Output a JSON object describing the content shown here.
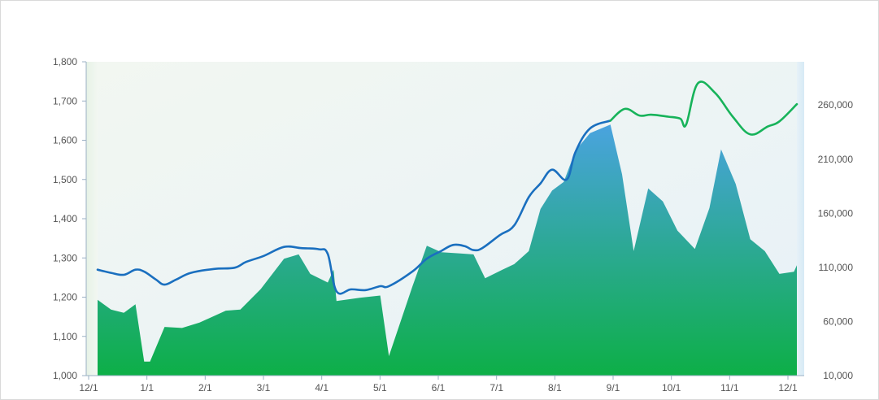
{
  "chart_data": {
    "type": "line",
    "title": "",
    "xlabel": "",
    "ylabel": "",
    "x_tick_labels": [
      "12/1",
      "1/1",
      "2/1",
      "3/1",
      "4/1",
      "5/1",
      "6/1",
      "7/1",
      "8/1",
      "9/1",
      "10/1",
      "11/1",
      "12/1"
    ],
    "y_left": {
      "range": [
        1000,
        1800
      ],
      "ticks": [
        1000,
        1100,
        1200,
        1300,
        1400,
        1500,
        1600,
        1700,
        1800
      ],
      "tick_labels": [
        "1,000",
        "1,100",
        "1,200",
        "1,300",
        "1,400",
        "1,500",
        "1,600",
        "1,700",
        "1,800"
      ]
    },
    "y_right": {
      "range": [
        10000,
        300000
      ],
      "ticks": [
        10000,
        60000,
        110000,
        160000,
        210000,
        260000
      ],
      "tick_labels": [
        "10,000",
        "60,000",
        "110,000",
        "160,000",
        "210,000",
        "260,000"
      ]
    },
    "grid": false,
    "series": [
      {
        "kind": "line",
        "axis": "left",
        "color_before": "#1a6fbf",
        "color_after": "#17b35a",
        "color_change_month": 8.8,
        "points": [
          [
            0,
            1270
          ],
          [
            0.23,
            1262
          ],
          [
            0.45,
            1257
          ],
          [
            0.65,
            1270
          ],
          [
            0.8,
            1265
          ],
          [
            1.0,
            1245
          ],
          [
            1.15,
            1232
          ],
          [
            1.35,
            1245
          ],
          [
            1.6,
            1262
          ],
          [
            2.0,
            1272
          ],
          [
            2.35,
            1275
          ],
          [
            2.55,
            1290
          ],
          [
            2.85,
            1305
          ],
          [
            3.2,
            1328
          ],
          [
            3.5,
            1325
          ],
          [
            3.8,
            1322
          ],
          [
            3.95,
            1310
          ],
          [
            4.1,
            1215
          ],
          [
            4.35,
            1220
          ],
          [
            4.6,
            1218
          ],
          [
            4.85,
            1228
          ],
          [
            5.0,
            1228
          ],
          [
            5.4,
            1265
          ],
          [
            5.65,
            1298
          ],
          [
            5.9,
            1318
          ],
          [
            6.1,
            1333
          ],
          [
            6.3,
            1330
          ],
          [
            6.45,
            1320
          ],
          [
            6.6,
            1325
          ],
          [
            6.9,
            1358
          ],
          [
            7.15,
            1383
          ],
          [
            7.4,
            1455
          ],
          [
            7.6,
            1490
          ],
          [
            7.8,
            1525
          ],
          [
            8.05,
            1500
          ],
          [
            8.2,
            1570
          ],
          [
            8.45,
            1630
          ],
          [
            8.8,
            1650
          ],
          [
            9.05,
            1680
          ],
          [
            9.3,
            1663
          ],
          [
            9.5,
            1665
          ],
          [
            9.8,
            1660
          ],
          [
            10.0,
            1655
          ],
          [
            10.1,
            1640
          ],
          [
            10.3,
            1745
          ],
          [
            10.6,
            1720
          ],
          [
            10.9,
            1660
          ],
          [
            11.2,
            1615
          ],
          [
            11.5,
            1635
          ],
          [
            11.7,
            1648
          ],
          [
            12.0,
            1692
          ]
        ]
      },
      {
        "kind": "area",
        "axis": "right",
        "gradient": [
          "#4aa3df",
          "#0daf47"
        ],
        "points": [
          [
            0,
            80000
          ],
          [
            0.23,
            71000
          ],
          [
            0.45,
            68000
          ],
          [
            0.65,
            76000
          ],
          [
            0.8,
            23000
          ],
          [
            0.9,
            23000
          ],
          [
            1.15,
            55000
          ],
          [
            1.45,
            54000
          ],
          [
            1.75,
            59000
          ],
          [
            2.2,
            70000
          ],
          [
            2.45,
            71000
          ],
          [
            2.8,
            90000
          ],
          [
            3.2,
            118000
          ],
          [
            3.45,
            122000
          ],
          [
            3.65,
            104000
          ],
          [
            3.95,
            96000
          ],
          [
            4.05,
            108000
          ],
          [
            4.1,
            79000
          ],
          [
            4.5,
            82000
          ],
          [
            4.85,
            84000
          ],
          [
            5.0,
            28000
          ],
          [
            5.4,
            92000
          ],
          [
            5.65,
            130000
          ],
          [
            5.9,
            124000
          ],
          [
            6.2,
            123000
          ],
          [
            6.45,
            122000
          ],
          [
            6.65,
            100000
          ],
          [
            6.95,
            108000
          ],
          [
            7.15,
            113000
          ],
          [
            7.4,
            125000
          ],
          [
            7.6,
            164000
          ],
          [
            7.8,
            181000
          ],
          [
            8.0,
            189000
          ],
          [
            8.2,
            218000
          ],
          [
            8.45,
            234000
          ],
          [
            8.8,
            242000
          ],
          [
            9.0,
            196000
          ],
          [
            9.2,
            125000
          ],
          [
            9.45,
            183000
          ],
          [
            9.7,
            171000
          ],
          [
            9.95,
            144000
          ],
          [
            10.25,
            127000
          ],
          [
            10.5,
            165000
          ],
          [
            10.7,
            219000
          ],
          [
            10.95,
            187000
          ],
          [
            11.2,
            136000
          ],
          [
            11.45,
            125000
          ],
          [
            11.7,
            104000
          ],
          [
            11.95,
            106000
          ],
          [
            12.0,
            112000
          ]
        ]
      }
    ]
  }
}
